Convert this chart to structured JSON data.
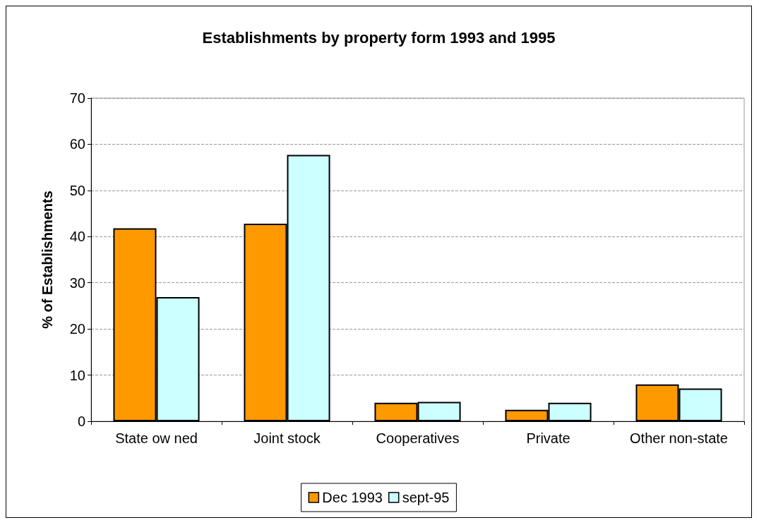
{
  "chart_data": {
    "type": "bar",
    "title": "Establishments by property form 1993 and 1995",
    "ylabel": "% of Establishments",
    "categories": [
      "State ow ned",
      "Joint stock",
      "Cooperatives",
      "Private",
      "Other non-state"
    ],
    "series": [
      {
        "name": "Dec 1993",
        "color": "#ff9900",
        "values": [
          41.8,
          42.8,
          4,
          2.5,
          8
        ]
      },
      {
        "name": "sept-95",
        "color": "#ccffff",
        "values": [
          26.9,
          57.7,
          4.2,
          4,
          7.1
        ]
      }
    ],
    "ylim": [
      0,
      70
    ],
    "yticks": [
      0,
      10,
      20,
      30,
      40,
      50,
      60,
      70
    ],
    "grid": "y",
    "legend": "bottom"
  }
}
